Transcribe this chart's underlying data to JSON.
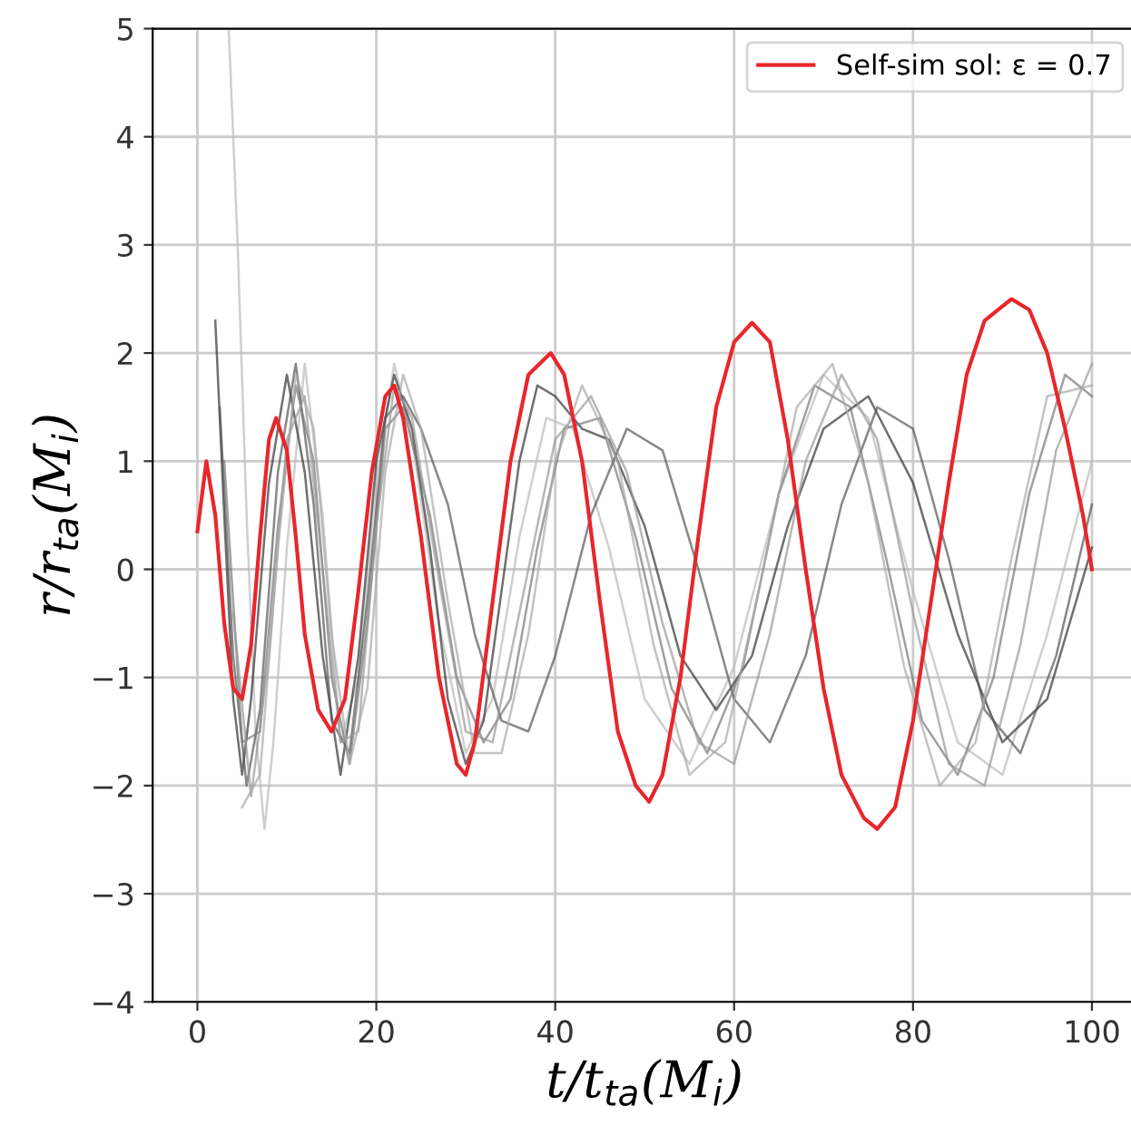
{
  "chart_data": {
    "type": "line",
    "xlabel": "t/t$_{ta}$(M$_{i}$)",
    "ylabel": "r/r$_{ta}$(M$_{i}$)",
    "xlim": [
      -5,
      105
    ],
    "ylim": [
      -4,
      5
    ],
    "xticks": [
      0,
      20,
      40,
      60,
      80,
      100
    ],
    "yticks": [
      -4,
      -3,
      -2,
      -1,
      0,
      1,
      2,
      3,
      4,
      5
    ],
    "grid": true,
    "legend": "top right",
    "marker": "none",
    "line_style": "solid",
    "series": [
      {
        "color": "#bbbbbb",
        "x": [
          3.5,
          4.5,
          5.5,
          6.5,
          7.5,
          8.5,
          10,
          12,
          14,
          16,
          18,
          20,
          22,
          24,
          27,
          30,
          33,
          36,
          39,
          42,
          46,
          50,
          55,
          60,
          65,
          70,
          75,
          80,
          85,
          90,
          95,
          100
        ],
        "values": [
          5.0,
          3.0,
          0.5,
          -1.5,
          -2.4,
          -1.6,
          0.2,
          1.9,
          0.5,
          -1.6,
          -1.0,
          0.8,
          1.9,
          1.2,
          -0.5,
          -1.7,
          -1.2,
          0.3,
          1.4,
          1.3,
          0.2,
          -1.2,
          -1.8,
          -0.9,
          0.7,
          1.8,
          1.4,
          -0.2,
          -1.6,
          -1.9,
          -0.6,
          1.0
        ]
      },
      {
        "color": "#333333",
        "x": [
          2,
          3,
          4,
          5,
          6,
          8,
          10,
          12,
          14,
          16,
          18,
          20,
          22,
          24,
          26,
          28,
          30,
          32,
          34,
          36,
          38,
          40,
          43,
          46,
          50,
          54,
          58,
          62,
          66,
          70,
          75,
          80,
          85,
          90,
          95,
          100
        ],
        "values": [
          2.3,
          0.5,
          -1.2,
          -1.9,
          -1.2,
          0.8,
          1.8,
          0.9,
          -0.8,
          -1.9,
          -0.8,
          1.0,
          1.8,
          1.3,
          0.2,
          -1.2,
          -1.8,
          -1.4,
          -0.2,
          1.0,
          1.7,
          1.6,
          1.3,
          1.2,
          0.4,
          -0.8,
          -1.3,
          -0.8,
          0.4,
          1.3,
          1.6,
          0.8,
          -0.6,
          -1.6,
          -1.2,
          0.2
        ]
      },
      {
        "color": "#555555",
        "x": [
          2.5,
          4,
          5.5,
          7,
          9,
          11,
          13,
          15,
          17,
          19,
          21,
          23,
          25,
          28,
          31,
          34,
          37,
          40,
          44,
          48,
          52,
          56,
          60,
          64,
          68,
          72,
          76,
          80,
          84,
          88,
          92,
          96,
          100
        ],
        "values": [
          1.5,
          -0.8,
          -2.0,
          -1.3,
          0.9,
          1.9,
          0.6,
          -1.4,
          -1.7,
          -0.3,
          1.4,
          1.6,
          1.3,
          0.6,
          -0.6,
          -1.4,
          -1.5,
          -0.8,
          0.5,
          1.3,
          1.1,
          0.0,
          -1.2,
          -1.6,
          -0.8,
          0.6,
          1.5,
          1.3,
          0.1,
          -1.3,
          -1.7,
          -0.8,
          0.6
        ]
      },
      {
        "color": "#777777",
        "x": [
          3,
          5,
          7,
          9,
          11,
          13,
          15,
          17,
          19,
          21,
          23,
          26,
          29,
          32,
          35,
          38,
          41,
          45,
          49,
          53,
          57,
          61,
          65,
          69,
          73,
          77,
          81,
          85,
          89,
          93,
          97,
          100
        ],
        "values": [
          1.0,
          -1.6,
          -1.5,
          0.4,
          1.7,
          1.0,
          -1.0,
          -1.8,
          -0.5,
          1.3,
          1.5,
          0.5,
          -1.0,
          -1.6,
          -1.2,
          0.2,
          1.3,
          1.4,
          0.3,
          -1.1,
          -1.7,
          -0.9,
          0.7,
          1.7,
          1.5,
          0.1,
          -1.4,
          -1.9,
          -1.0,
          0.7,
          1.8,
          1.6
        ]
      },
      {
        "color": "#999999",
        "x": [
          4,
          6,
          8,
          10,
          12,
          14,
          16,
          18,
          20,
          22,
          24,
          27,
          30,
          33,
          36,
          40,
          44,
          48,
          52,
          56,
          60,
          64,
          68,
          72,
          76,
          80,
          84,
          88,
          92,
          96,
          100
        ],
        "values": [
          -0.4,
          -2.1,
          -0.8,
          1.2,
          1.6,
          0.0,
          -1.6,
          -1.5,
          0.4,
          1.7,
          1.4,
          -0.1,
          -1.5,
          -1.6,
          -0.4,
          1.2,
          1.6,
          0.9,
          -0.5,
          -1.6,
          -1.8,
          -0.6,
          1.0,
          1.8,
          1.2,
          -0.4,
          -1.8,
          -2.0,
          -0.7,
          1.1,
          1.9
        ]
      },
      {
        "color": "#aaaaaa",
        "x": [
          5,
          7,
          9,
          11,
          13,
          15,
          17,
          19,
          21,
          23,
          25,
          28,
          31,
          34,
          37,
          40,
          43,
          47,
          51,
          55,
          59,
          63,
          67,
          71,
          75,
          79,
          83,
          87,
          91,
          95,
          100
        ],
        "values": [
          -2.2,
          -1.9,
          0.2,
          1.8,
          1.3,
          -0.6,
          -1.8,
          -1.1,
          0.9,
          1.8,
          1.3,
          -0.3,
          -1.7,
          -1.7,
          -0.6,
          1.0,
          1.7,
          1.0,
          -0.7,
          -1.9,
          -1.6,
          -0.1,
          1.5,
          1.9,
          0.8,
          -0.9,
          -2.0,
          -1.6,
          0.1,
          1.6,
          1.7
        ]
      },
      {
        "name": "Self-sim sol: ε = 0.7",
        "color": "#e8262b",
        "x": [
          0,
          1,
          2,
          3,
          4,
          5,
          6,
          7,
          8,
          8.8,
          10,
          11,
          12,
          13.5,
          15,
          16.5,
          18,
          19.5,
          21,
          22,
          23,
          25,
          27,
          29,
          30,
          31,
          33,
          35,
          37,
          39.5,
          41,
          43,
          45,
          47,
          49,
          50.5,
          52,
          54,
          56,
          58,
          60,
          62,
          64,
          66,
          68,
          70,
          72,
          74.5,
          76,
          78,
          80,
          82,
          84,
          86,
          88,
          91,
          93,
          95,
          97,
          99,
          100
        ],
        "values": [
          0.35,
          1.0,
          0.5,
          -0.5,
          -1.1,
          -1.2,
          -0.7,
          0.3,
          1.2,
          1.4,
          1.1,
          0.3,
          -0.6,
          -1.3,
          -1.5,
          -1.2,
          -0.2,
          0.9,
          1.6,
          1.7,
          1.4,
          0.3,
          -1.0,
          -1.8,
          -1.9,
          -1.6,
          -0.3,
          1.0,
          1.8,
          2.0,
          1.8,
          1.0,
          -0.3,
          -1.5,
          -2.0,
          -2.15,
          -1.9,
          -1.0,
          0.3,
          1.5,
          2.1,
          2.28,
          2.1,
          1.2,
          0.0,
          -1.1,
          -1.9,
          -2.3,
          -2.4,
          -2.2,
          -1.4,
          -0.3,
          0.8,
          1.8,
          2.3,
          2.5,
          2.4,
          2.0,
          1.3,
          0.5,
          0.0
        ]
      }
    ]
  }
}
